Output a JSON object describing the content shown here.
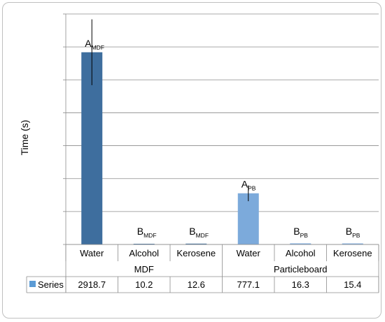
{
  "chart_data": {
    "type": "bar",
    "ylabel": "Time (s)",
    "ylim": [
      0,
      3500
    ],
    "y_gridline_step": 500,
    "grid": true,
    "groups": [
      {
        "label": "MDF",
        "categories": [
          "Water",
          "Alcohol",
          "Kerosene"
        ]
      },
      {
        "label": "Particleboard",
        "categories": [
          "Water",
          "Alcohol",
          "Kerosene"
        ]
      }
    ],
    "categories": [
      "Water",
      "Alcohol",
      "Kerosene",
      "Water",
      "Alcohol",
      "Kerosene"
    ],
    "series": [
      {
        "name": "Series",
        "values": [
          2918.7,
          10.2,
          12.6,
          777.1,
          16.3,
          15.4
        ],
        "value_labels": [
          "2918.7",
          "10.2",
          "12.6",
          "777.1",
          "16.3",
          "15.4"
        ],
        "error": [
          500,
          0,
          0,
          120,
          0,
          0
        ],
        "significance_letters": [
          "A",
          "B",
          "B",
          "A",
          "B",
          "B"
        ],
        "significance_subscripts": [
          "MDF",
          "MDF",
          "MDF",
          "PB",
          "PB",
          "PB"
        ]
      }
    ],
    "bar_colors": [
      "#3e6e9e",
      "#3e6e9e",
      "#3e6e9e",
      "#7caadb",
      "#7caadb",
      "#7caadb"
    ],
    "legend_color": "#5b9bd5",
    "data_table": true
  }
}
